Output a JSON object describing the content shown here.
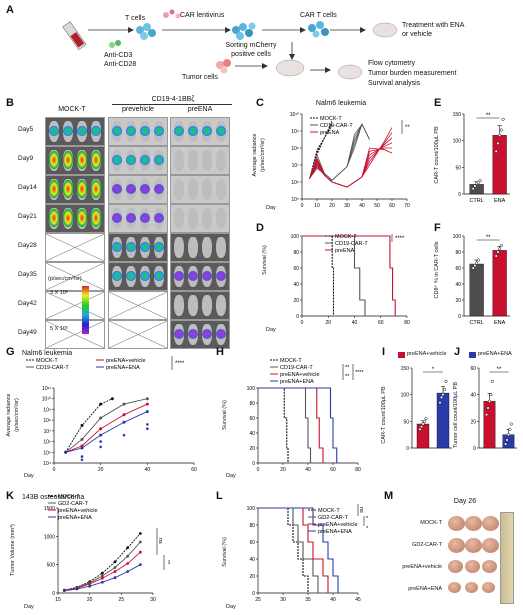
{
  "panelA": {
    "label": "A",
    "t_cells": "T cells",
    "anti_cd3": "Anti-CD3",
    "anti_cd28": "Anti-CD28",
    "car_lentivirus": "CAR lentivirus",
    "sorting": "Sorting mCherry",
    "positive_cells": "positive cells",
    "car_t_cells": "CAR T cells",
    "treatment1": "Treatment with ENA",
    "treatment2": "or vehicle",
    "tumor_cells": "Tumor cells",
    "flow": "Flow cytometry",
    "burden": "Tumor burden measurement",
    "survival": "Survival analysis"
  },
  "panelB": {
    "label": "B",
    "col1": "MOCK-T",
    "group_header": "CD19-4-1BBζ",
    "col2": "prevehicle",
    "col3": "preENA",
    "days": [
      "Day5",
      "Day9",
      "Day14",
      "Day21",
      "Day28",
      "Day35",
      "Day42",
      "Day49"
    ],
    "scale_unit": "(p/sec/cm²/sr)",
    "scale_max": "3 X 10⁸",
    "scale_min": "5 X 10⁵"
  },
  "panelC": {
    "label": "C",
    "title": "Nalm6 leukemia",
    "ylabel1": "Average radiance",
    "ylabel2": "(p/sec/cm²/sr)",
    "xlabel": "Day",
    "legend": [
      "MOCK-T",
      "CD19-CAR-T",
      "preENA"
    ],
    "sig": "**",
    "yticks": [
      "10¹⁰",
      "10⁹",
      "10⁸",
      "10⁷",
      "10⁶",
      "10⁵"
    ],
    "xticks": [
      "0",
      "10",
      "20",
      "30",
      "40",
      "50",
      "60",
      "70"
    ]
  },
  "panelD": {
    "label": "D",
    "ylabel": "Survival (%)",
    "xlabel": "Day",
    "legend": [
      "MOCK-T",
      "CD19-CAR-T",
      "preENA"
    ],
    "sig": "****",
    "yticks": [
      "100",
      "80",
      "60",
      "40",
      "20",
      "0"
    ],
    "xticks": [
      "0",
      "20",
      "40",
      "60",
      "80"
    ]
  },
  "panelE": {
    "label": "E",
    "ylabel": "CAR-T count/100μL PB",
    "cats": [
      "CTRL",
      "ENA"
    ],
    "sig": "**",
    "yticks": [
      "150",
      "100",
      "50",
      "0"
    ]
  },
  "panelF": {
    "label": "F",
    "ylabel": "CD8⁺ % in CAR-T cells",
    "cats": [
      "CTRL",
      "ENA"
    ],
    "sig": "**",
    "yticks": [
      "100",
      "80",
      "60",
      "40",
      "20",
      "0"
    ]
  },
  "panelG": {
    "label": "G",
    "title": "Nalm6 leukemia",
    "ylabel1": "Average radiance",
    "ylabel2": "(p/sec/cm²/sr)",
    "xlabel": "Day",
    "legend": [
      "MOCK-T",
      "CD19-CAR-T",
      "preENA+vehicle",
      "preENA+ENA"
    ],
    "sig": "****",
    "yticks": [
      "10¹¹",
      "10¹⁰",
      "10⁹",
      "10⁸",
      "10⁷",
      "10⁶",
      "10⁵",
      "10⁴"
    ],
    "xticks": [
      "0",
      "20",
      "40",
      "60"
    ]
  },
  "panelH": {
    "label": "H",
    "ylabel": "Survival (%)",
    "xlabel": "Day",
    "legend": [
      "MOCK-T",
      "CD19-CAR-T",
      "preENA+vehicle",
      "preENA+ENA"
    ],
    "sig1": "**",
    "sig2": "**",
    "sig3": "****",
    "yticks": [
      "100",
      "80",
      "60",
      "40",
      "20",
      "0"
    ],
    "xticks": [
      "0",
      "20",
      "40",
      "60",
      "80"
    ]
  },
  "panelI": {
    "label": "I",
    "legend": "preENA+vehicle",
    "ylabel": "CAR-T count/100μL PB",
    "sig": "*",
    "yticks": [
      "150",
      "100",
      "50",
      "0"
    ]
  },
  "panelJ": {
    "label": "J",
    "legend": "preENA+ENA",
    "ylabel": "Tumor cell count/100μL PB",
    "sig": "**",
    "yticks": [
      "60",
      "40",
      "20",
      "0"
    ]
  },
  "panelK": {
    "label": "K",
    "title": "143B osteosarcoma",
    "ylabel": "Tumor Volume (mm³)",
    "xlabel": "Day",
    "legend": [
      "MOCK-T",
      "GD2-CAR-T",
      "preENA+vehicle",
      "preENA+ENA"
    ],
    "sig1": "ns",
    "sig2": "**",
    "yticks": [
      "1500",
      "1000",
      "500",
      "0"
    ],
    "xticks": [
      "15",
      "20",
      "25",
      "30"
    ]
  },
  "panelL": {
    "label": "L",
    "ylabel": "Survival (%)",
    "xlabel": "Day",
    "legend": [
      "MOCK-T",
      "GD2-CAR-T",
      "preENA+vehicle",
      "preENA+ENA"
    ],
    "sig1": "ns",
    "sig2": "*",
    "sig3": "*",
    "yticks": [
      "100",
      "80",
      "60",
      "40",
      "20",
      "0"
    ],
    "xticks": [
      "25",
      "30",
      "35",
      "40",
      "45"
    ]
  },
  "panelM": {
    "label": "M",
    "title": "Day 26",
    "rows": [
      "MOCK-T",
      "GD2-CAR-T",
      "preENA+vehicle",
      "preENA+ENA"
    ]
  },
  "colors": {
    "red": "#c8102e",
    "blue": "#2b3aa8",
    "dark": "#4d4d4d",
    "black": "#111111"
  }
}
